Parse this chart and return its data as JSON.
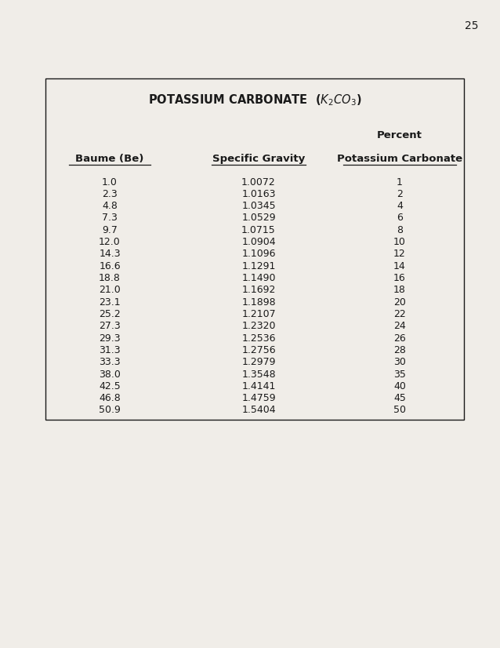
{
  "page_number": "25",
  "title": "POTASSIUM CARBONATE  ($K_2CO_3$)",
  "col1_header": "Baume (Be)",
  "col2_header": "Specific Gravity",
  "col3_header_line1": "Percent",
  "col3_header_line2": "Potassium Carbonate",
  "baume": [
    "1.0",
    "2.3",
    "4.8",
    "7.3",
    "9.7",
    "12.0",
    "14.3",
    "16.6",
    "18.8",
    "21.0",
    "23.1",
    "25.2",
    "27.3",
    "29.3",
    "31.3",
    "33.3",
    "38.0",
    "42.5",
    "46.8",
    "50.9"
  ],
  "specific_gravity": [
    "1.0072",
    "1.0163",
    "1.0345",
    "1.0529",
    "1.0715",
    "1.0904",
    "1.1096",
    "1.1291",
    "1.1490",
    "1.1692",
    "1.1898",
    "1.2107",
    "1.2320",
    "1.2536",
    "1.2756",
    "1.2979",
    "1.3548",
    "1.4141",
    "1.4759",
    "1.5404"
  ],
  "percent": [
    "1",
    "2",
    "4",
    "6",
    "8",
    "10",
    "12",
    "14",
    "16",
    "18",
    "20",
    "22",
    "24",
    "26",
    "28",
    "30",
    "35",
    "40",
    "45",
    "50"
  ],
  "bg_color": "#f0ede8",
  "text_color": "#1a1a1a",
  "box_color": "#1a1a1a",
  "font_size": 9.0,
  "title_font_size": 10.5,
  "header_font_size": 9.5
}
